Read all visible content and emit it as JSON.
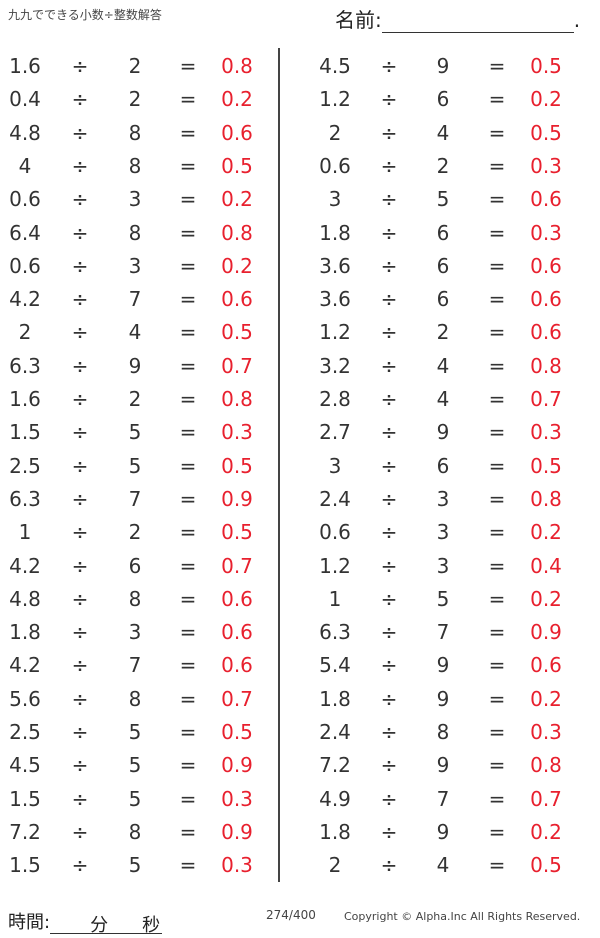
{
  "header": {
    "title": "九九でできる小数÷整数解答",
    "name_label": "名前:",
    "name_end": "."
  },
  "symbols": {
    "divide": "÷",
    "equals": "="
  },
  "colors": {
    "answer": "#e8202e"
  },
  "left": [
    [
      "1.6",
      "2",
      "0.8"
    ],
    [
      "0.4",
      "2",
      "0.2"
    ],
    [
      "4.8",
      "8",
      "0.6"
    ],
    [
      "4",
      "8",
      "0.5"
    ],
    [
      "0.6",
      "3",
      "0.2"
    ],
    [
      "6.4",
      "8",
      "0.8"
    ],
    [
      "0.6",
      "3",
      "0.2"
    ],
    [
      "4.2",
      "7",
      "0.6"
    ],
    [
      "2",
      "4",
      "0.5"
    ],
    [
      "6.3",
      "9",
      "0.7"
    ],
    [
      "1.6",
      "2",
      "0.8"
    ],
    [
      "1.5",
      "5",
      "0.3"
    ],
    [
      "2.5",
      "5",
      "0.5"
    ],
    [
      "6.3",
      "7",
      "0.9"
    ],
    [
      "1",
      "2",
      "0.5"
    ],
    [
      "4.2",
      "6",
      "0.7"
    ],
    [
      "4.8",
      "8",
      "0.6"
    ],
    [
      "1.8",
      "3",
      "0.6"
    ],
    [
      "4.2",
      "7",
      "0.6"
    ],
    [
      "5.6",
      "8",
      "0.7"
    ],
    [
      "2.5",
      "5",
      "0.5"
    ],
    [
      "4.5",
      "5",
      "0.9"
    ],
    [
      "1.5",
      "5",
      "0.3"
    ],
    [
      "7.2",
      "8",
      "0.9"
    ],
    [
      "1.5",
      "5",
      "0.3"
    ]
  ],
  "right": [
    [
      "4.5",
      "9",
      "0.5"
    ],
    [
      "1.2",
      "6",
      "0.2"
    ],
    [
      "2",
      "4",
      "0.5"
    ],
    [
      "0.6",
      "2",
      "0.3"
    ],
    [
      "3",
      "5",
      "0.6"
    ],
    [
      "1.8",
      "6",
      "0.3"
    ],
    [
      "3.6",
      "6",
      "0.6"
    ],
    [
      "3.6",
      "6",
      "0.6"
    ],
    [
      "1.2",
      "2",
      "0.6"
    ],
    [
      "3.2",
      "4",
      "0.8"
    ],
    [
      "2.8",
      "4",
      "0.7"
    ],
    [
      "2.7",
      "9",
      "0.3"
    ],
    [
      "3",
      "6",
      "0.5"
    ],
    [
      "2.4",
      "3",
      "0.8"
    ],
    [
      "0.6",
      "3",
      "0.2"
    ],
    [
      "1.2",
      "3",
      "0.4"
    ],
    [
      "1",
      "5",
      "0.2"
    ],
    [
      "6.3",
      "7",
      "0.9"
    ],
    [
      "5.4",
      "9",
      "0.6"
    ],
    [
      "1.8",
      "9",
      "0.2"
    ],
    [
      "2.4",
      "8",
      "0.3"
    ],
    [
      "7.2",
      "9",
      "0.8"
    ],
    [
      "4.9",
      "7",
      "0.7"
    ],
    [
      "1.8",
      "9",
      "0.2"
    ],
    [
      "2",
      "4",
      "0.5"
    ]
  ],
  "footer": {
    "time_label": "時間:",
    "minutes": "分",
    "seconds": "秒",
    "page": "274/400",
    "copyright": "Copyright ©  Alpha.Inc All Rights Reserved."
  }
}
